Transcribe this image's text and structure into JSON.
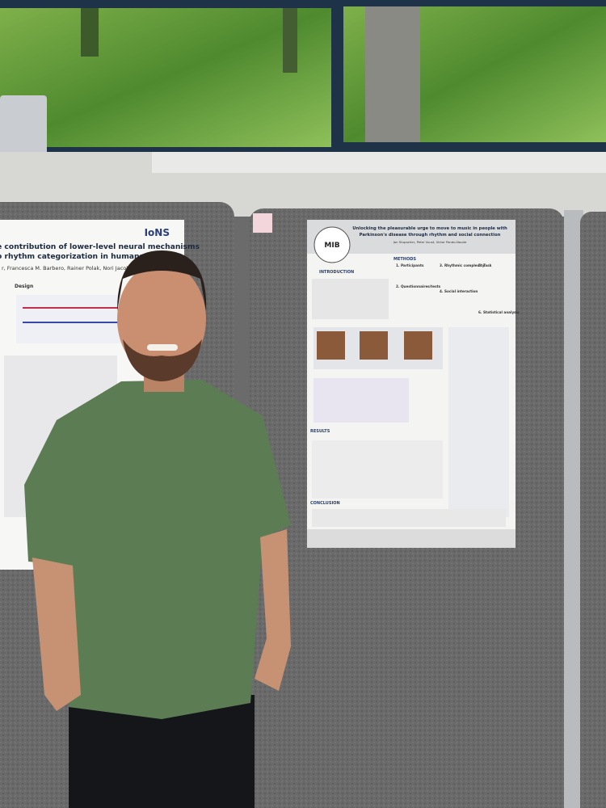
{
  "left_poster": {
    "logo": "IoNS",
    "title_lines": [
      "e contribution of lower-level neural mechanisms",
      "o rhythm categorization in humans"
    ],
    "authors": "r, Francesca M. Barbero, Rainer Polak, Nori Jacoby",
    "section": "Design"
  },
  "right_poster": {
    "logo": "MIB",
    "title_lines": [
      "Unlocking the pleasurable urge to move to music in people with",
      "Parkinson's disease through rhythm and social connection"
    ],
    "authors": "Jan Stupacher, Peter Vuust, Victor Pando-Naude",
    "sections": [
      "INTRODUCTION",
      "METHODS",
      "RESULTS",
      "CONCLUSION"
    ],
    "methods": [
      "1. Participants",
      "2. Questionnaires/tests",
      "3. Rhythmic complexity",
      "4. Social interaction",
      "5. Task",
      "6. Statistical analysis"
    ]
  }
}
